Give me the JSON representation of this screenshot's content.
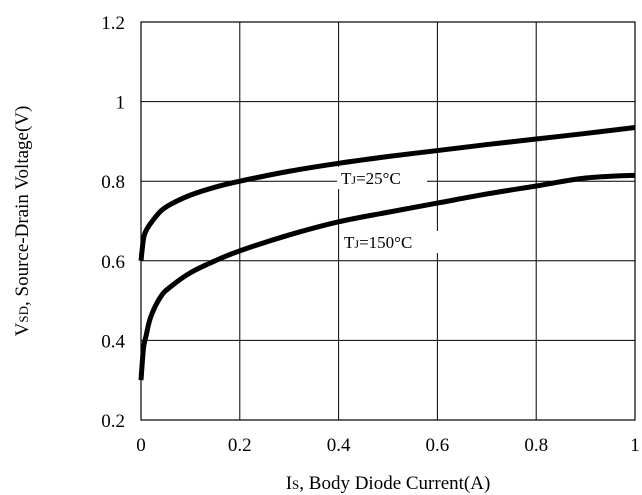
{
  "chart_data": {
    "type": "line",
    "title": "",
    "xlabel": "IS, Body Diode Current(A)",
    "ylabel": "VSD, Source-Drain Voltage(V)",
    "xlim": [
      0,
      1
    ],
    "ylim": [
      0.2,
      1.2
    ],
    "x_ticks": [
      "0",
      "0.2",
      "0.4",
      "0.6",
      "0.8",
      "1"
    ],
    "y_ticks": [
      "0.2",
      "0.4",
      "0.6",
      "0.8",
      "1",
      "1.2"
    ],
    "grid": true,
    "series": [
      {
        "name": "TJ=25°C",
        "x": [
          0.0,
          0.005,
          0.01,
          0.02,
          0.04,
          0.06,
          0.1,
          0.15,
          0.2,
          0.3,
          0.4,
          0.5,
          0.6,
          0.7,
          0.8,
          0.9,
          1.0
        ],
        "y": [
          0.6,
          0.655,
          0.675,
          0.695,
          0.725,
          0.742,
          0.765,
          0.785,
          0.8,
          0.825,
          0.845,
          0.862,
          0.877,
          0.892,
          0.906,
          0.92,
          0.935
        ]
      },
      {
        "name": "TJ=150°C",
        "x": [
          0.0,
          0.005,
          0.01,
          0.02,
          0.04,
          0.06,
          0.1,
          0.15,
          0.2,
          0.3,
          0.4,
          0.5,
          0.6,
          0.7,
          0.8,
          0.9,
          1.0
        ],
        "y": [
          0.3,
          0.38,
          0.41,
          0.46,
          0.51,
          0.535,
          0.57,
          0.6,
          0.625,
          0.665,
          0.698,
          0.722,
          0.745,
          0.768,
          0.788,
          0.808,
          0.815
        ]
      }
    ],
    "annotations": [
      {
        "series": 0,
        "text": "TJ=25°C",
        "main": "T",
        "sub": "J",
        "rest": "=25°C"
      },
      {
        "series": 1,
        "text": "TJ=150°C",
        "main": "T",
        "sub": "J",
        "rest": "=150°C"
      }
    ],
    "axis_title_parts": {
      "x": {
        "main": "I",
        "sub": "S",
        "rest": ", Body Diode Current(A)"
      },
      "y": {
        "main": "V",
        "sub": "SD",
        "rest": ", Source-Drain Voltage(V)"
      }
    },
    "colors": {
      "line": "#000000",
      "grid": "#000000",
      "background": "#ffffff"
    }
  }
}
